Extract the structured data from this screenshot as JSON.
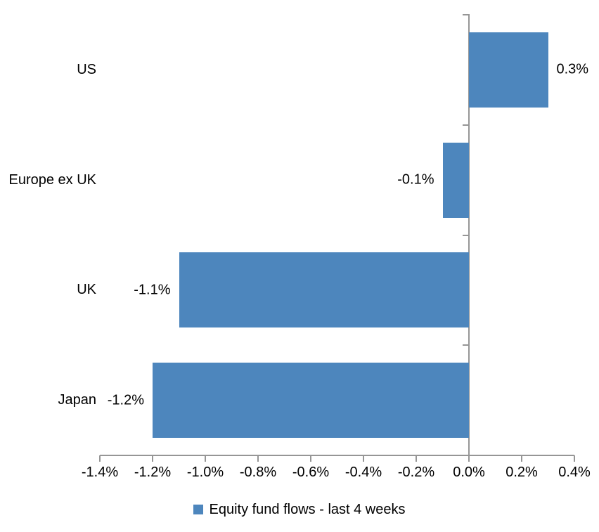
{
  "chart_data": {
    "type": "bar",
    "orientation": "horizontal",
    "title": "",
    "categories": [
      "US",
      "Europe ex UK",
      "UK",
      "Japan"
    ],
    "values": [
      0.3,
      -0.1,
      -1.1,
      -1.2
    ],
    "data_labels": [
      "0.3%",
      "-0.1%",
      "-1.1%",
      "-1.2%"
    ],
    "xlim": [
      -1.4,
      0.4
    ],
    "x_ticks": [
      -1.4,
      -1.2,
      -1.0,
      -0.8,
      -0.6,
      -0.4,
      -0.2,
      0.0,
      0.2,
      0.4
    ],
    "x_tick_labels": [
      "-1.4%",
      "-1.2%",
      "-1.0%",
      "-0.8%",
      "-0.6%",
      "-0.4%",
      "-0.2%",
      "0.0%",
      "0.2%",
      "0.4%"
    ],
    "grid": false,
    "legend_position": "bottom",
    "legend": [
      {
        "label": "Equity fund flows - last 4 weeks",
        "color": "#4D86BD"
      }
    ],
    "bar_color": "#4D86BD",
    "axis_color": "#969696",
    "text_color": "#000000"
  }
}
